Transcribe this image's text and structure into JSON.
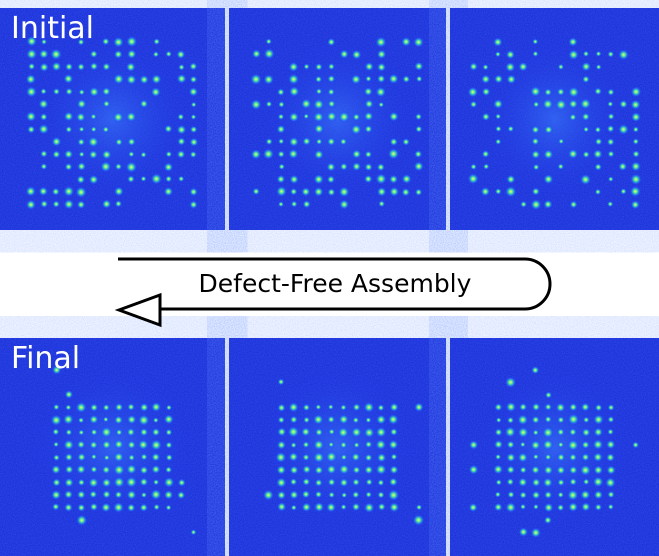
{
  "panels": {
    "initial_label": "Initial",
    "final_label": "Final"
  },
  "arrow": {
    "label": "Defect-Free Assembly"
  }
}
